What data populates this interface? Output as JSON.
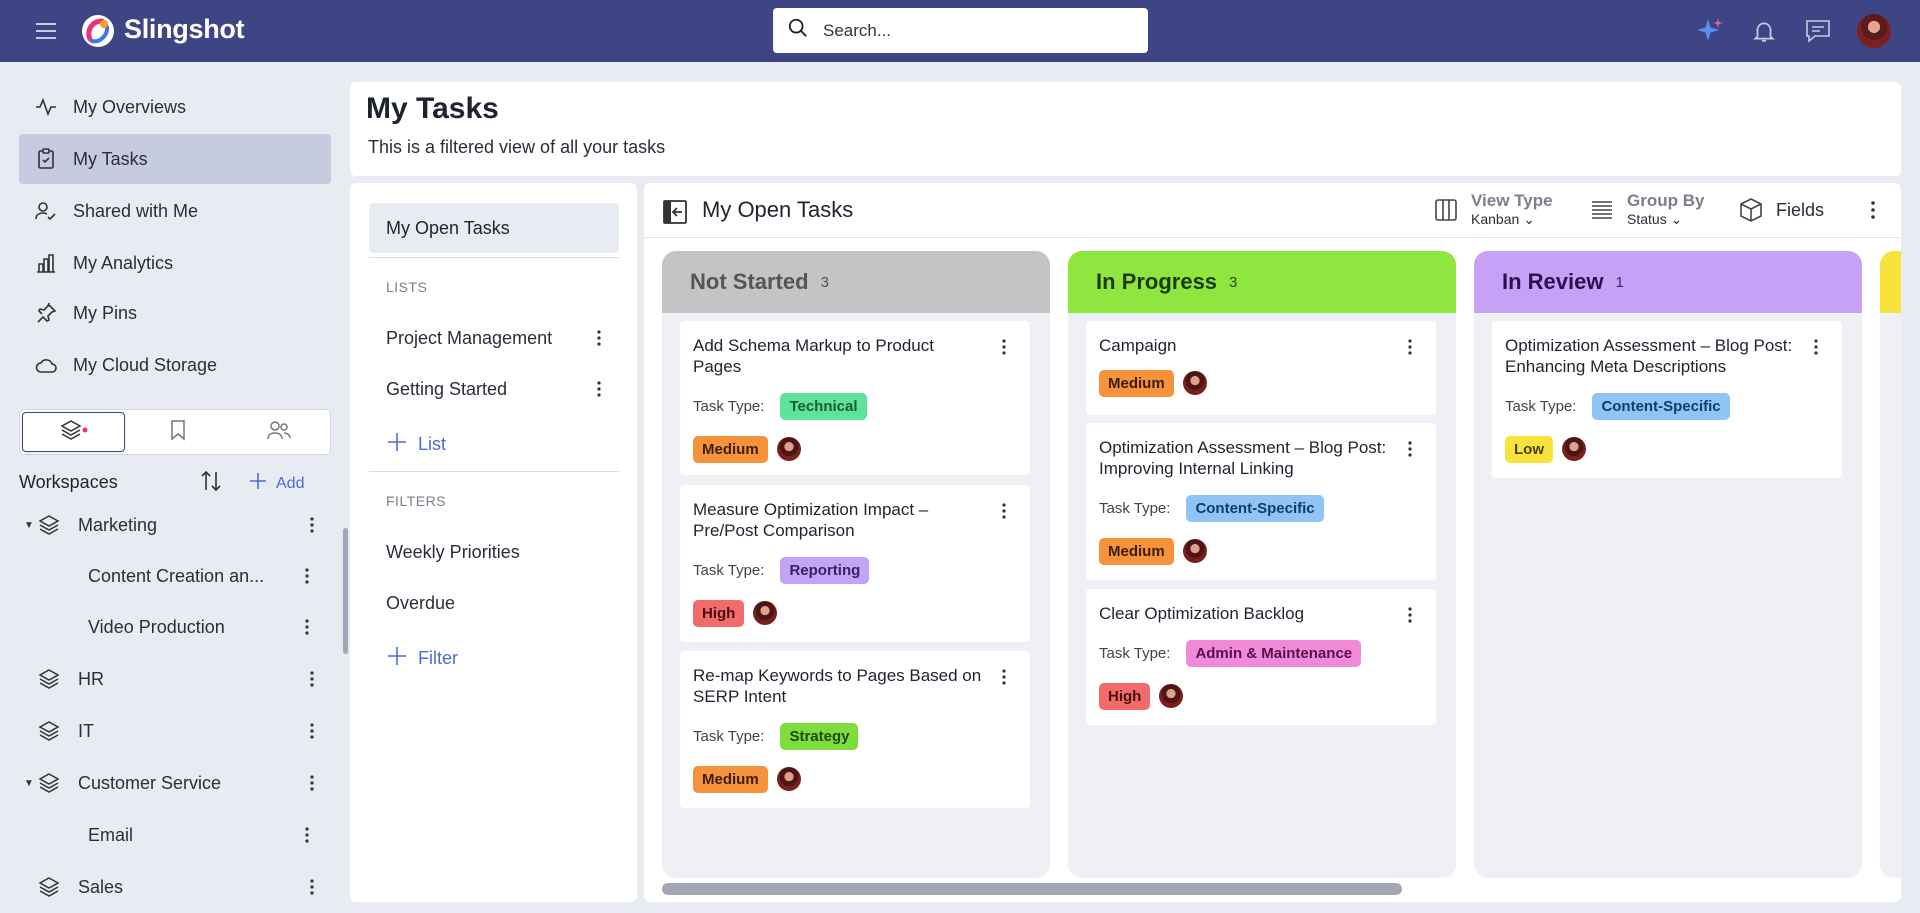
{
  "app": {
    "brand": "Slingshot"
  },
  "search": {
    "placeholder": "Search..."
  },
  "sidebar": {
    "items": [
      {
        "label": "My Overviews"
      },
      {
        "label": "My Tasks"
      },
      {
        "label": "Shared with Me"
      },
      {
        "label": "My Analytics"
      },
      {
        "label": "My Pins"
      },
      {
        "label": "My Cloud Storage"
      }
    ],
    "workspaces_title": "Workspaces",
    "add_label": "Add",
    "workspaces": [
      {
        "label": "Marketing"
      },
      {
        "label": "Content Creation an..."
      },
      {
        "label": "Video Production"
      },
      {
        "label": "HR"
      },
      {
        "label": "IT"
      },
      {
        "label": "Customer Service"
      },
      {
        "label": "Email"
      },
      {
        "label": "Sales"
      }
    ]
  },
  "header": {
    "title": "My Tasks",
    "subtitle": "This is a filtered view of all your tasks"
  },
  "lists_panel": {
    "selected": "My Open Tasks",
    "lists_section": "LISTS",
    "lists": [
      "Project Management",
      "Getting Started"
    ],
    "add_list": "List",
    "filters_section": "FILTERS",
    "filters": [
      "Weekly Priorities",
      "Overdue"
    ],
    "add_filter": "Filter"
  },
  "kanban": {
    "title": "My Open Tasks",
    "view_type": {
      "label": "View Type",
      "value": "Kanban"
    },
    "group_by": {
      "label": "Group By",
      "value": "Status"
    },
    "fields_label": "Fields",
    "task_type_label": "Task Type:",
    "columns": [
      {
        "title": "Not Started",
        "count": "3",
        "color": "#c4c4c4",
        "cards": [
          {
            "title": "Add Schema Markup to Product Pages",
            "type": "Technical",
            "priority": "Medium"
          },
          {
            "title": "Measure Optimization Impact – Pre/Post Comparison",
            "type": "Reporting",
            "priority": "High"
          },
          {
            "title": "Re-map Keywords to Pages Based on SERP Intent",
            "type": "Strategy",
            "priority": "Medium"
          }
        ]
      },
      {
        "title": "In Progress",
        "count": "3",
        "color": "#8ee63f",
        "cards": [
          {
            "title": "Campaign",
            "type": "",
            "priority": "Medium"
          },
          {
            "title": "Optimization Assessment – Blog Post: Improving Internal Linking",
            "type": "Content-Specific",
            "priority": "Medium"
          },
          {
            "title": "Clear Optimization Backlog",
            "type": "Admin & Maintenance",
            "priority": "High"
          }
        ]
      },
      {
        "title": "In Review",
        "count": "1",
        "color": "#c6a2f7",
        "cards": [
          {
            "title": "Optimization Assessment – Blog Post: Enhancing Meta Descriptions",
            "type": "Content-Specific",
            "priority": "Low"
          }
        ]
      }
    ]
  },
  "colors": {
    "topbar": "#3d4585",
    "accent": "#4e6ad9",
    "chip_technical": "#5ee39a",
    "chip_reporting": "#c3a3f5",
    "chip_strategy": "#7ddc3e",
    "chip_content": "#8fc5f5",
    "chip_admin": "#f08ad8",
    "priority_medium": "#f5923a",
    "priority_high": "#f26b6b",
    "priority_low": "#f7e33c"
  }
}
